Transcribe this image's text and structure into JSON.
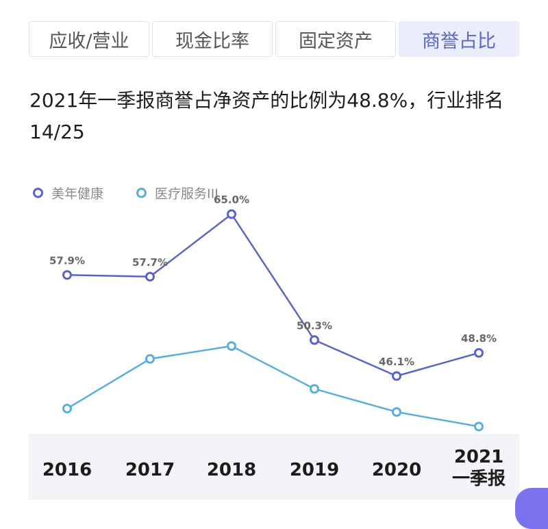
{
  "tabs": [
    {
      "label": "应收/营业",
      "active": false
    },
    {
      "label": "现金比率",
      "active": false
    },
    {
      "label": "固定资产",
      "active": false
    },
    {
      "label": "商誉占比",
      "active": true
    }
  ],
  "summary": {
    "line1": "2021年一季报商誉占净资产的比例为48.8%，行业排名",
    "line2": "14/25"
  },
  "colors": {
    "series1": "#5a64c8",
    "series2": "#5aaedc",
    "accent": "#7b72f0"
  },
  "chart_data": {
    "type": "line",
    "categories": [
      "2016",
      "2017",
      "2018",
      "2019",
      "2020",
      "2021\n一季报"
    ],
    "series": [
      {
        "name": "美年健康",
        "values": [
          57.9,
          57.7,
          65.0,
          50.3,
          46.1,
          48.8
        ],
        "labels": [
          "57.9%",
          "57.7%",
          "65.0%",
          "50.3%",
          "46.1%",
          "48.8%"
        ]
      },
      {
        "name": "医疗服务III",
        "values": [
          42.3,
          48.1,
          49.6,
          44.6,
          41.9,
          40.2
        ]
      }
    ],
    "ylim": [
      30,
      70
    ],
    "grid": false,
    "legend_position": "top-left"
  }
}
